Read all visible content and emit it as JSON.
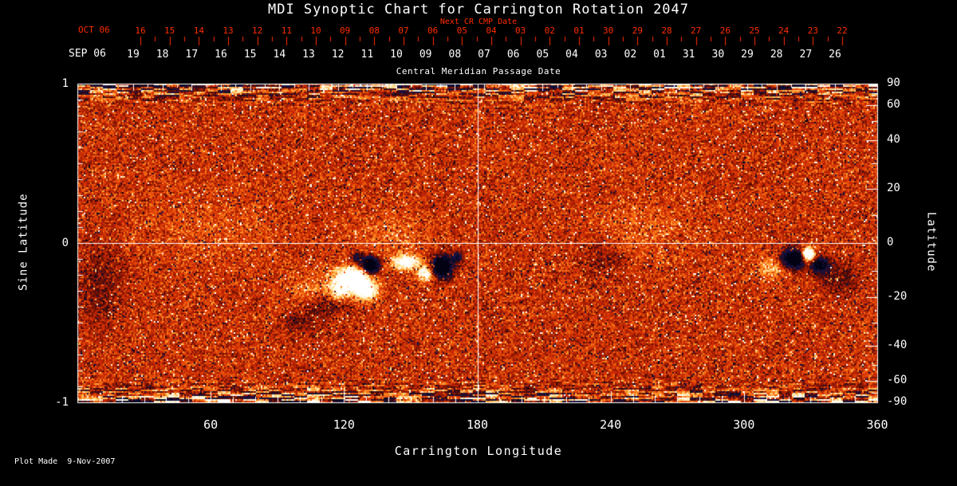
{
  "title": "MDI Synoptic Chart for Carrington Rotation 2047",
  "colors": {
    "background": "#000000",
    "axis": "#ffffff",
    "date_axis_red": "#ff2d00",
    "base_red": "#cd2a05",
    "positive_field": "#ffffff",
    "negative_field": "#141450"
  },
  "top_axis": {
    "next_cr_label": "Next CR CMP Date",
    "oct_month_label": "OCT 06",
    "oct_ticks": [
      "16",
      "15",
      "14",
      "13",
      "12",
      "11",
      "10",
      "09",
      "08",
      "07",
      "06",
      "05",
      "04",
      "03",
      "02",
      "01",
      "30",
      "29",
      "28",
      "27",
      "26",
      "25",
      "24",
      "23",
      "22"
    ],
    "sep_month_label": "SEP 06",
    "sep_ticks": [
      "19",
      "18",
      "17",
      "16",
      "15",
      "14",
      "13",
      "12",
      "11",
      "10",
      "09",
      "08",
      "07",
      "06",
      "05",
      "04",
      "03",
      "02",
      "01",
      "31",
      "30",
      "29",
      "28",
      "27",
      "26"
    ],
    "cmp_axis_label": "Central Meridian Passage Date"
  },
  "left_axis": {
    "label": "Sine Latitude",
    "ticks": [
      "1",
      "0",
      "-1"
    ]
  },
  "right_axis": {
    "label": "Latitude",
    "ticks": [
      "90",
      "60",
      "40",
      "20",
      "0",
      "-20",
      "-40",
      "-60",
      "-90"
    ]
  },
  "bottom_axis": {
    "label": "Carrington Longitude",
    "ticks": [
      "60",
      "120",
      "180",
      "240",
      "300",
      "360"
    ]
  },
  "footer": {
    "plot_made": "Plot Made  9-Nov-2007"
  },
  "chart_data": {
    "type": "heatmap",
    "title": "MDI Synoptic Chart for Carrington Rotation 2047",
    "description": "Solar synoptic magnetogram: noisy red/orange background of weak field, white/yellow patches = positive magnetic polarity, dark blue/black patches = negative polarity; streaky mixed noise bands at both poles.",
    "xlabel": "Carrington Longitude",
    "x_range": [
      0,
      360
    ],
    "x_ticks": [
      60,
      120,
      180,
      240,
      300,
      360
    ],
    "ylabel_left": "Sine Latitude",
    "y_range": [
      -1,
      1
    ],
    "y_ticks_left": [
      1,
      0,
      -1
    ],
    "ylabel_right": "Latitude",
    "y_ticks_right": [
      90,
      60,
      40,
      20,
      0,
      -20,
      -40,
      -60,
      -90
    ],
    "grid": {
      "vertical_longitude": 180,
      "horizontal_sine_latitude": 0
    },
    "top_axis_red_dates": {
      "month": "OCT 06",
      "days": [
        "16",
        "15",
        "14",
        "13",
        "12",
        "11",
        "10",
        "09",
        "08",
        "07",
        "06",
        "05",
        "04",
        "03",
        "02",
        "01",
        "30",
        "29",
        "28",
        "27",
        "26",
        "25",
        "24",
        "23",
        "22"
      ]
    },
    "top_axis_white_dates": {
      "month": "SEP 06",
      "days": [
        "19",
        "18",
        "17",
        "16",
        "15",
        "14",
        "13",
        "12",
        "11",
        "10",
        "09",
        "08",
        "07",
        "06",
        "05",
        "04",
        "03",
        "02",
        "01",
        "31",
        "30",
        "29",
        "28",
        "27",
        "26"
      ]
    },
    "colormap": {
      "stops": [
        [
          -1.6,
          [
            2,
            2,
            18
          ]
        ],
        [
          -1.1,
          [
            20,
            20,
            75
          ]
        ],
        [
          -0.8,
          [
            40,
            12,
            40
          ]
        ],
        [
          -0.55,
          [
            75,
            10,
            4
          ]
        ],
        [
          -0.25,
          [
            150,
            25,
            2
          ]
        ],
        [
          0.0,
          [
            205,
            42,
            5
          ]
        ],
        [
          0.25,
          [
            235,
            85,
            10
          ]
        ],
        [
          0.5,
          [
            255,
            140,
            35
          ]
        ],
        [
          0.8,
          [
            255,
            215,
            120
          ]
        ],
        [
          1.1,
          [
            255,
            246,
            220
          ]
        ],
        [
          1.5,
          [
            255,
            255,
            255
          ]
        ]
      ]
    },
    "noise": {
      "gain": 0.42,
      "speckle_prob": 0.06,
      "speckle_min": 0.55,
      "speckle_span": 0.9,
      "pole_streak_start": 0.78
    },
    "active_regions": [
      {
        "lon": 124,
        "sine_lat": -0.22,
        "rlon": 7,
        "rsine": 0.07,
        "amp": 2.4
      },
      {
        "lon": 130,
        "sine_lat": -0.3,
        "rlon": 5,
        "rsine": 0.055,
        "amp": 1.9
      },
      {
        "lon": 118,
        "sine_lat": -0.3,
        "rlon": 4,
        "rsine": 0.05,
        "amp": 1.2
      },
      {
        "lon": 132,
        "sine_lat": -0.14,
        "rlon": 3.5,
        "rsine": 0.05,
        "amp": -3.2
      },
      {
        "lon": 126,
        "sine_lat": -0.1,
        "rlon": 3,
        "rsine": 0.04,
        "amp": -1.2
      },
      {
        "lon": 148,
        "sine_lat": -0.12,
        "rlon": 6,
        "rsine": 0.045,
        "amp": 1.7
      },
      {
        "lon": 157,
        "sine_lat": -0.19,
        "rlon": 4,
        "rsine": 0.05,
        "amp": 1.5
      },
      {
        "lon": 164,
        "sine_lat": -0.15,
        "rlon": 4.5,
        "rsine": 0.065,
        "amp": -3.0
      },
      {
        "lon": 171,
        "sine_lat": -0.09,
        "rlon": 2.5,
        "rsine": 0.035,
        "amp": -1.3
      },
      {
        "lon": 112,
        "sine_lat": -0.38,
        "rlon": 10,
        "rsine": 0.08,
        "amp": -0.65
      },
      {
        "lon": 100,
        "sine_lat": -0.5,
        "rlon": 8,
        "rsine": 0.07,
        "amp": -0.45
      },
      {
        "lon": 109,
        "sine_lat": -0.3,
        "rlon": 14,
        "rsine": 0.1,
        "amp": 0.55
      },
      {
        "lon": 322,
        "sine_lat": -0.1,
        "rlon": 5,
        "rsine": 0.06,
        "amp": -2.7
      },
      {
        "lon": 329,
        "sine_lat": -0.07,
        "rlon": 2.6,
        "rsine": 0.04,
        "amp": 3.0
      },
      {
        "lon": 334,
        "sine_lat": -0.14,
        "rlon": 4,
        "rsine": 0.05,
        "amp": -1.8
      },
      {
        "lon": 313,
        "sine_lat": -0.15,
        "rlon": 7,
        "rsine": 0.07,
        "amp": 0.7
      },
      {
        "lon": 343,
        "sine_lat": -0.22,
        "rlon": 8,
        "rsine": 0.1,
        "amp": -0.55
      },
      {
        "lon": 10,
        "sine_lat": -0.25,
        "rlon": 10,
        "rsine": 0.25,
        "amp": -0.4
      },
      {
        "lon": 237,
        "sine_lat": -0.1,
        "rlon": 10,
        "rsine": 0.12,
        "amp": -0.35
      },
      {
        "lon": 255,
        "sine_lat": 0.08,
        "rlon": 22,
        "rsine": 0.18,
        "amp": 0.25
      },
      {
        "lon": 60,
        "sine_lat": 0.08,
        "rlon": 28,
        "rsine": 0.22,
        "amp": 0.22
      },
      {
        "lon": 140,
        "sine_lat": 0.05,
        "rlon": 18,
        "rsine": 0.14,
        "amp": 0.3
      }
    ]
  }
}
